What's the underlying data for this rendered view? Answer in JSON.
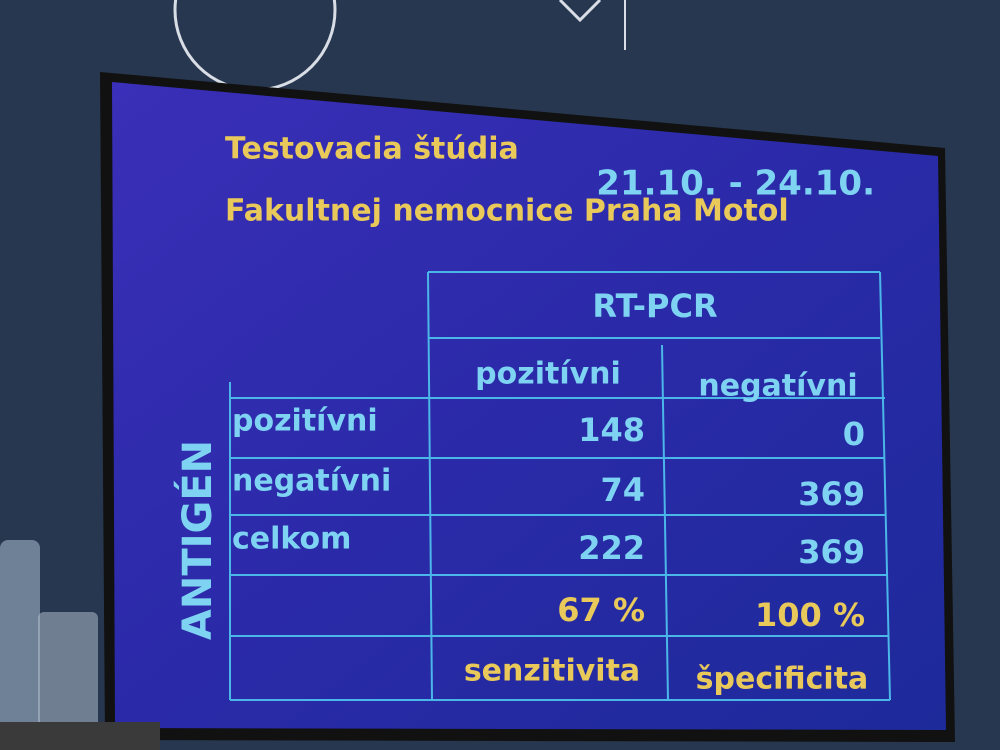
{
  "screen": {
    "title_line1": "Testovacia štúdia",
    "date": "21.10. - 24.10.",
    "title_line2": "Fakultnej nemocnice Praha Motol"
  },
  "table": {
    "group_header": "RT-PCR",
    "row_group_label": "ANTIGÉN",
    "column_headers": [
      "pozitívni",
      "negatívni"
    ],
    "rows": [
      {
        "label": "pozitívni",
        "values": [
          148,
          0
        ]
      },
      {
        "label": "negatívni",
        "values": [
          74,
          369
        ]
      },
      {
        "label": "celkom",
        "values": [
          222,
          369
        ]
      }
    ],
    "percentages": [
      "67 %",
      "100 %"
    ],
    "metrics": [
      "senzitivita",
      "špecificita"
    ]
  }
}
